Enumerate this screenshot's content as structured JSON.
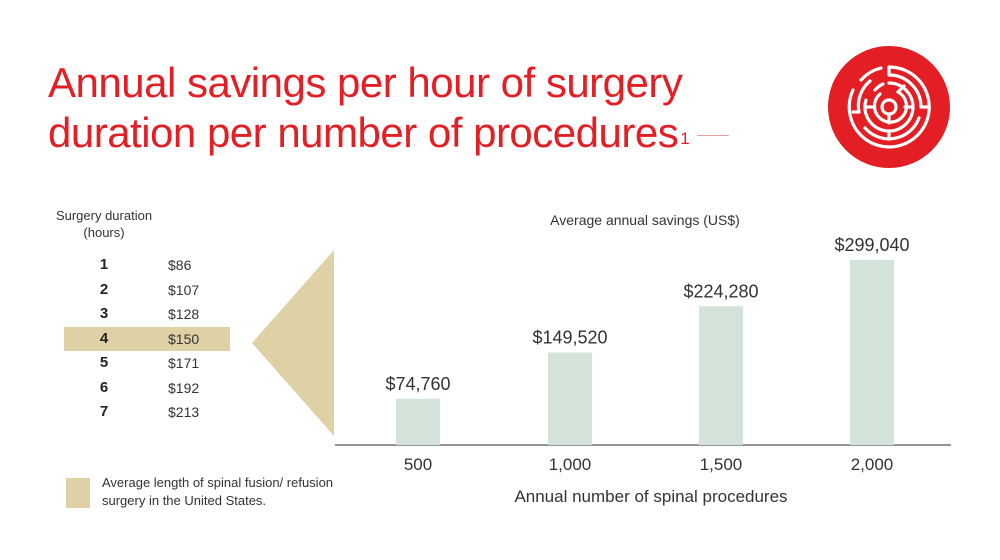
{
  "header": {
    "title_line1": "Annual savings per hour of surgery",
    "title_line2": "duration per number of procedures",
    "title_sup": "1"
  },
  "logo": {
    "icon": "maze-icon",
    "color": "#e31e24"
  },
  "duration_table": {
    "header": "Surgery duration (hours)",
    "highlight_color": "#ddd1a5",
    "rows": [
      {
        "hours": "1",
        "cost": "$86",
        "highlighted": false
      },
      {
        "hours": "2",
        "cost": "$107",
        "highlighted": false
      },
      {
        "hours": "3",
        "cost": "$128",
        "highlighted": false
      },
      {
        "hours": "4",
        "cost": "$150",
        "highlighted": true
      },
      {
        "hours": "5",
        "cost": "$171",
        "highlighted": false
      },
      {
        "hours": "6",
        "cost": "$192",
        "highlighted": false
      },
      {
        "hours": "7",
        "cost": "$213",
        "highlighted": false
      }
    ]
  },
  "legend": {
    "text": "Average length of spinal fusion/ refusion surgery in the United States."
  },
  "chart_data": {
    "type": "bar",
    "title": "Average annual savings (US$)",
    "xlabel": "Annual number of spinal procedures",
    "ylabel": "",
    "categories": [
      "500",
      "1,000",
      "1,500",
      "2,000"
    ],
    "values": [
      74760,
      149520,
      224280,
      299040
    ],
    "value_labels": [
      "$74,760",
      "$149,520",
      "$224,280",
      "$299,040"
    ],
    "ylim": [
      0,
      299040
    ],
    "grid": false,
    "bar_color": "#d4e3da",
    "axis_color": "#555555"
  }
}
